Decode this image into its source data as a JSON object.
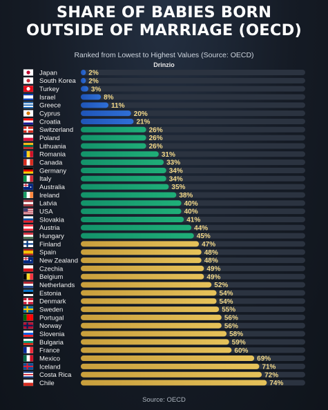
{
  "title_line1": "SHARE OF BABIES BORN",
  "title_line2": "OUTSIDE OF MARRIAGE (OECD)",
  "subtitle": "Ranked from Lowest to Highest Values (Source: OECD)",
  "watermark": "Drinzio",
  "footer": "Source: OECD",
  "colors": {
    "blue": "#2f6fd6",
    "green": "#1fae78",
    "gold": "#e6c25a",
    "track": "#2b3340",
    "value_text": "#f3d98a"
  },
  "chart_data": {
    "type": "bar",
    "orientation": "horizontal",
    "title": "SHARE OF BABIES BORN OUTSIDE OF MARRIAGE (OECD)",
    "subtitle": "Ranked from Lowest to Highest Values (Source: OECD)",
    "unit": "%",
    "xlim": [
      0,
      100
    ],
    "categories": [
      "Japan",
      "South Korea",
      "Turkey",
      "Israel",
      "Greece",
      "Cyprus",
      "Croatia",
      "Switzerland",
      "Poland",
      "Lithuania",
      "Romania",
      "Canada",
      "Germany",
      "Italy",
      "Australia",
      "Ireland",
      "Latvia",
      "USA",
      "Slovakia",
      "Austria",
      "Hungary",
      "Finland",
      "Spain",
      "New Zealand",
      "Czechia",
      "Belgium",
      "Netherlands",
      "Estonia",
      "Denmark",
      "Sweden",
      "Portugal",
      "Norway",
      "Slovenia",
      "Bulgaria",
      "France",
      "Mexico",
      "Iceland",
      "Costa Rica",
      "Chile"
    ],
    "values": [
      2,
      2,
      3,
      8,
      11,
      20,
      21,
      26,
      26,
      26,
      31,
      33,
      34,
      34,
      35,
      38,
      40,
      40,
      41,
      44,
      45,
      47,
      48,
      48,
      49,
      49,
      52,
      54,
      54,
      55,
      56,
      56,
      58,
      59,
      60,
      69,
      71,
      72,
      74
    ],
    "labels": [
      "2%",
      "2%",
      "3%",
      "8%",
      "11%",
      "20%",
      "21%",
      "26%",
      "26%",
      "26%",
      "31%",
      "33%",
      "34%",
      "34%",
      "35%",
      "38%",
      "40%",
      "40%",
      "41%",
      "44%",
      "45%",
      "47%",
      "48%",
      "48%",
      "49%",
      "49%",
      "52%",
      "54%",
      "54%",
      "55%",
      "56%",
      "56%",
      "58%",
      "59%",
      "60%",
      "69%",
      "71%",
      "72%",
      "74%"
    ],
    "color_groups": [
      "blue",
      "blue",
      "blue",
      "blue",
      "blue",
      "blue",
      "blue",
      "green",
      "green",
      "green",
      "green",
      "green",
      "green",
      "green",
      "green",
      "green",
      "green",
      "green",
      "green",
      "green",
      "green",
      "gold",
      "gold",
      "gold",
      "gold",
      "gold",
      "gold",
      "gold",
      "gold",
      "gold",
      "gold",
      "gold",
      "gold",
      "gold",
      "gold",
      "gold",
      "gold",
      "gold",
      "gold"
    ],
    "flags": [
      {
        "type": "circle",
        "bg": "#ffffff",
        "fg": "#bc002d"
      },
      {
        "type": "circle",
        "bg": "#ffffff",
        "fg": "#cd2e3a"
      },
      {
        "type": "circle",
        "bg": "#e30a17",
        "fg": "#ffffff"
      },
      {
        "type": "h",
        "colors": [
          "#0038b8",
          "#ffffff",
          "#ffffff",
          "#0038b8"
        ]
      },
      {
        "type": "h",
        "colors": [
          "#0d5eaf",
          "#ffffff",
          "#0d5eaf",
          "#ffffff",
          "#0d5eaf"
        ]
      },
      {
        "type": "circle",
        "bg": "#ffffff",
        "fg": "#d57800"
      },
      {
        "type": "h",
        "colors": [
          "#ff0000",
          "#ffffff",
          "#171796"
        ]
      },
      {
        "type": "cross",
        "bg": "#d52b1e",
        "fg": "#ffffff"
      },
      {
        "type": "h",
        "colors": [
          "#ffffff",
          "#dc143c"
        ]
      },
      {
        "type": "h",
        "colors": [
          "#fdb913",
          "#006a44",
          "#c1272d"
        ]
      },
      {
        "type": "v",
        "colors": [
          "#002b7f",
          "#fcd116",
          "#ce1126"
        ]
      },
      {
        "type": "v",
        "colors": [
          "#d52b1e",
          "#ffffff",
          "#d52b1e"
        ]
      },
      {
        "type": "h",
        "colors": [
          "#000000",
          "#dd0000",
          "#ffce00"
        ]
      },
      {
        "type": "v",
        "colors": [
          "#009246",
          "#ffffff",
          "#ce2b37"
        ]
      },
      {
        "type": "canton",
        "bg": "#00247d",
        "fg": "#cc142b"
      },
      {
        "type": "v",
        "colors": [
          "#169b62",
          "#ffffff",
          "#ff883e"
        ]
      },
      {
        "type": "h",
        "colors": [
          "#9e3039",
          "#ffffff",
          "#9e3039"
        ]
      },
      {
        "type": "stripes",
        "bg": "#b22234",
        "fg": "#3c3b6e"
      },
      {
        "type": "h",
        "colors": [
          "#ffffff",
          "#0b4ea2",
          "#ee1c25"
        ]
      },
      {
        "type": "h",
        "colors": [
          "#ed2939",
          "#ffffff",
          "#ed2939"
        ]
      },
      {
        "type": "h",
        "colors": [
          "#ce2939",
          "#ffffff",
          "#477050"
        ]
      },
      {
        "type": "cross",
        "bg": "#ffffff",
        "fg": "#003580"
      },
      {
        "type": "h",
        "colors": [
          "#aa151b",
          "#f1bf00",
          "#f1bf00",
          "#aa151b"
        ]
      },
      {
        "type": "canton",
        "bg": "#00247d",
        "fg": "#cc142b"
      },
      {
        "type": "h",
        "colors": [
          "#ffffff",
          "#d7141a"
        ]
      },
      {
        "type": "v",
        "colors": [
          "#000000",
          "#fdda24",
          "#ef3340"
        ]
      },
      {
        "type": "h",
        "colors": [
          "#ae1c28",
          "#ffffff",
          "#21468b"
        ]
      },
      {
        "type": "h",
        "colors": [
          "#0072ce",
          "#000000",
          "#ffffff"
        ]
      },
      {
        "type": "cross",
        "bg": "#c8102e",
        "fg": "#ffffff"
      },
      {
        "type": "cross",
        "bg": "#006aa7",
        "fg": "#fecc00"
      },
      {
        "type": "v",
        "colors": [
          "#006600",
          "#ff0000",
          "#ff0000"
        ]
      },
      {
        "type": "cross",
        "bg": "#ba0c2f",
        "fg": "#00205b"
      },
      {
        "type": "h",
        "colors": [
          "#ffffff",
          "#005ce5",
          "#ed1c24"
        ]
      },
      {
        "type": "h",
        "colors": [
          "#ffffff",
          "#00966e",
          "#d62612"
        ]
      },
      {
        "type": "v",
        "colors": [
          "#002395",
          "#ffffff",
          "#ed2939"
        ]
      },
      {
        "type": "v",
        "colors": [
          "#006847",
          "#ffffff",
          "#ce1126"
        ]
      },
      {
        "type": "cross",
        "bg": "#02529c",
        "fg": "#dc1e35"
      },
      {
        "type": "h",
        "colors": [
          "#002b7f",
          "#ffffff",
          "#ce1126",
          "#ffffff",
          "#002b7f"
        ]
      },
      {
        "type": "h",
        "colors": [
          "#ffffff",
          "#d52b1e"
        ]
      }
    ]
  }
}
